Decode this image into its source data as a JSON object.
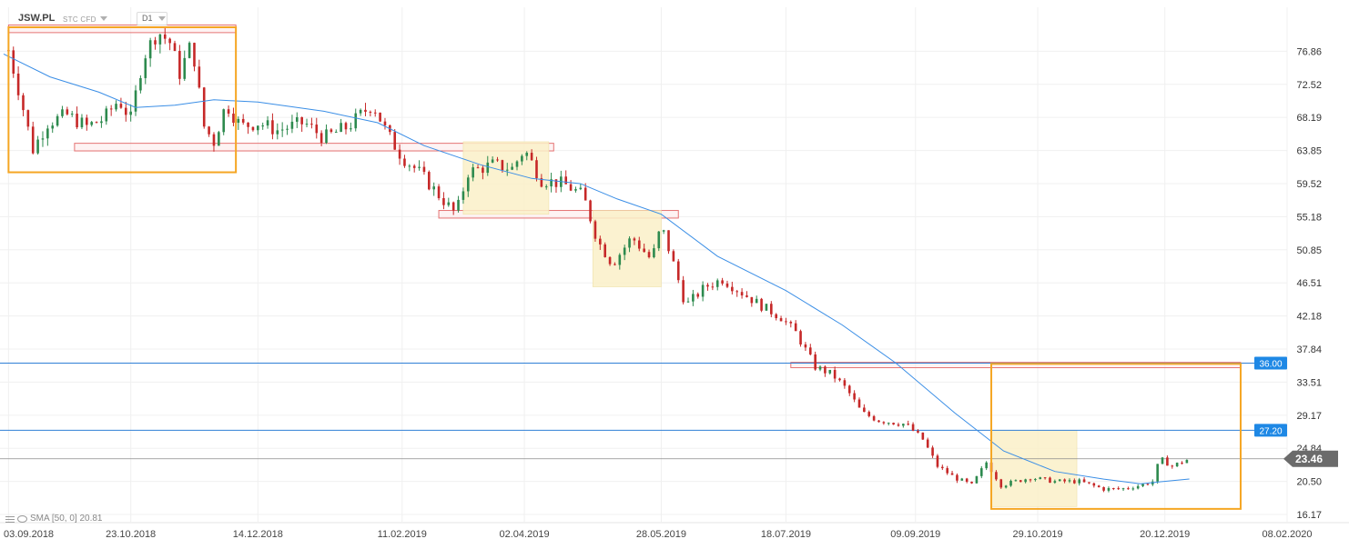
{
  "header": {
    "symbol": "JSW.PL",
    "instrument_type": "STC CFD",
    "timeframe": "D1"
  },
  "indicator": {
    "label": "SMA [50, 0] 20.81",
    "icon": "layers-icon",
    "eye_icon": "eye-icon"
  },
  "colors": {
    "bull": "#2d8a4e",
    "bear": "#c62828",
    "sma": "#3a8ee6",
    "hline": "#2f7fd6",
    "price_tag": "#6b6b6b",
    "level_tag": "#1e88e5",
    "orange_box": "#f5a623",
    "zone_fill": "#faf0c8",
    "red_zone": "#e57373"
  },
  "chart_data": {
    "type": "candlestick",
    "y_ticks": [
      "76.86",
      "72.52",
      "68.19",
      "63.85",
      "59.52",
      "55.18",
      "50.85",
      "46.51",
      "42.18",
      "37.84",
      "33.51",
      "29.17",
      "24.84",
      "20.50",
      "16.17"
    ],
    "ylim": [
      16.17,
      80.0
    ],
    "x_ticks": [
      "03.09.2018",
      "23.10.2018",
      "14.12.2018",
      "11.02.2019",
      "02.04.2019",
      "28.05.2019",
      "18.07.2019",
      "09.09.2019",
      "29.10.2019",
      "20.12.2019",
      "08.02.2020"
    ],
    "xlim": [
      "2018-09-01",
      "2020-02-08"
    ],
    "horizontal_levels": [
      {
        "value": 36.0,
        "label": "36.00"
      },
      {
        "value": 27.2,
        "label": "27.20"
      }
    ],
    "last_price": {
      "value": 23.46,
      "label": "23.46"
    },
    "sma": {
      "period": 50,
      "value": 20.81
    },
    "close_path": [
      [
        "2018-09-03",
        77.0
      ],
      [
        "2018-09-07",
        72.0
      ],
      [
        "2018-09-13",
        64.0
      ],
      [
        "2018-09-19",
        67.5
      ],
      [
        "2018-09-27",
        68.5
      ],
      [
        "2018-10-05",
        67.0
      ],
      [
        "2018-10-12",
        68.0
      ],
      [
        "2018-10-18",
        70.5
      ],
      [
        "2018-10-23",
        68.0
      ],
      [
        "2018-10-28",
        76.0
      ],
      [
        "2018-11-03",
        79.5
      ],
      [
        "2018-11-08",
        78.0
      ],
      [
        "2018-11-12",
        74.0
      ],
      [
        "2018-11-17",
        78.0
      ],
      [
        "2018-11-22",
        67.0
      ],
      [
        "2018-11-26",
        65.0
      ],
      [
        "2018-12-01",
        70.0
      ],
      [
        "2018-12-07",
        67.0
      ],
      [
        "2018-12-14",
        67.5
      ],
      [
        "2018-12-22",
        66.5
      ],
      [
        "2019-01-02",
        67.5
      ],
      [
        "2019-01-10",
        65.5
      ],
      [
        "2019-01-20",
        67.0
      ],
      [
        "2019-01-30",
        70.0
      ],
      [
        "2019-02-05",
        66.0
      ],
      [
        "2019-02-11",
        63.0
      ],
      [
        "2019-02-18",
        61.0
      ],
      [
        "2019-02-26",
        58.0
      ],
      [
        "2019-03-05",
        55.5
      ],
      [
        "2019-03-10",
        61.0
      ],
      [
        "2019-03-20",
        62.0
      ],
      [
        "2019-03-28",
        61.5
      ],
      [
        "2019-04-02",
        64.0
      ],
      [
        "2019-04-09",
        60.0
      ],
      [
        "2019-04-18",
        59.5
      ],
      [
        "2019-04-26",
        58.0
      ],
      [
        "2019-05-02",
        52.0
      ],
      [
        "2019-05-08",
        49.0
      ],
      [
        "2019-05-16",
        52.5
      ],
      [
        "2019-05-24",
        49.5
      ],
      [
        "2019-05-28",
        54.0
      ],
      [
        "2019-06-03",
        48.0
      ],
      [
        "2019-06-07",
        43.5
      ],
      [
        "2019-06-15",
        46.0
      ],
      [
        "2019-06-22",
        47.0
      ],
      [
        "2019-07-01",
        45.0
      ],
      [
        "2019-07-08",
        43.5
      ],
      [
        "2019-07-16",
        42.0
      ],
      [
        "2019-07-22",
        40.0
      ],
      [
        "2019-07-30",
        35.5
      ],
      [
        "2019-08-06",
        34.5
      ],
      [
        "2019-08-12",
        32.5
      ],
      [
        "2019-08-18",
        29.5
      ],
      [
        "2019-08-25",
        28.5
      ],
      [
        "2019-09-05",
        28.0
      ],
      [
        "2019-09-12",
        26.0
      ],
      [
        "2019-09-18",
        22.5
      ],
      [
        "2019-09-25",
        21.0
      ],
      [
        "2019-10-02",
        20.0
      ],
      [
        "2019-10-08",
        23.0
      ],
      [
        "2019-10-14",
        20.0
      ],
      [
        "2019-10-20",
        20.5
      ],
      [
        "2019-10-26",
        21.0
      ],
      [
        "2019-11-05",
        20.5
      ],
      [
        "2019-11-15",
        20.5
      ],
      [
        "2019-11-25",
        19.5
      ],
      [
        "2019-12-02",
        19.5
      ],
      [
        "2019-12-10",
        20.0
      ],
      [
        "2019-12-15",
        20.5
      ],
      [
        "2019-12-18",
        23.5
      ],
      [
        "2019-12-23",
        22.5
      ],
      [
        "2019-12-30",
        23.46
      ]
    ],
    "sma_path": [
      [
        "2018-09-01",
        76.5
      ],
      [
        "2018-09-20",
        73.5
      ],
      [
        "2018-10-10",
        71.5
      ],
      [
        "2018-10-25",
        69.5
      ],
      [
        "2018-11-10",
        69.8
      ],
      [
        "2018-11-26",
        70.5
      ],
      [
        "2018-12-14",
        70.2
      ],
      [
        "2019-01-10",
        69.0
      ],
      [
        "2019-02-01",
        67.5
      ],
      [
        "2019-02-20",
        64.5
      ],
      [
        "2019-03-15",
        62.0
      ],
      [
        "2019-04-05",
        60.2
      ],
      [
        "2019-04-25",
        59.5
      ],
      [
        "2019-05-10",
        57.5
      ],
      [
        "2019-05-28",
        55.5
      ],
      [
        "2019-06-20",
        50.0
      ],
      [
        "2019-07-18",
        45.5
      ],
      [
        "2019-08-10",
        41.0
      ],
      [
        "2019-09-01",
        36.0
      ],
      [
        "2019-09-25",
        29.5
      ],
      [
        "2019-10-15",
        24.5
      ],
      [
        "2019-11-05",
        21.8
      ],
      [
        "2019-11-25",
        20.8
      ],
      [
        "2019-12-10",
        20.2
      ],
      [
        "2019-12-30",
        20.81
      ]
    ],
    "annotations": [
      {
        "type": "orange_box",
        "x": [
          "2018-09-03",
          "2018-12-05"
        ],
        "y": [
          61.0,
          80.0
        ]
      },
      {
        "type": "orange_box",
        "x": [
          "2019-10-10",
          "2020-01-20"
        ],
        "y": [
          16.9,
          35.9
        ]
      },
      {
        "type": "red_zone",
        "x": [
          "2018-09-03",
          "2018-12-05"
        ],
        "y": [
          79.3,
          80.3
        ]
      },
      {
        "type": "red_zone",
        "x": [
          "2018-09-30",
          "2019-04-14"
        ],
        "y": [
          63.8,
          64.8
        ]
      },
      {
        "type": "red_zone",
        "x": [
          "2019-02-26",
          "2019-06-04"
        ],
        "y": [
          55.0,
          56.0
        ]
      },
      {
        "type": "red_zone",
        "x": [
          "2019-07-20",
          "2020-01-20"
        ],
        "y": [
          35.4,
          36.1
        ]
      },
      {
        "type": "yellow_zone",
        "x": [
          "2019-03-08",
          "2019-04-12"
        ],
        "y": [
          55.5,
          65.0
        ]
      },
      {
        "type": "yellow_zone",
        "x": [
          "2019-04-30",
          "2019-05-28"
        ],
        "y": [
          46.0,
          56.0
        ]
      },
      {
        "type": "yellow_zone",
        "x": [
          "2019-10-10",
          "2019-11-14"
        ],
        "y": [
          17.2,
          27.2
        ]
      }
    ]
  }
}
